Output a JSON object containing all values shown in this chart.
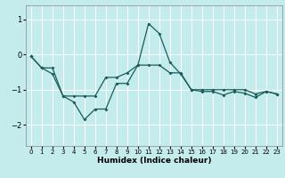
{
  "xlabel": "Humidex (Indice chaleur)",
  "ylabel": "",
  "bg_color": "#c5ecec",
  "line_color": "#1a5c5c",
  "grid_color": "#ffffff",
  "xlim": [
    -0.5,
    23.5
  ],
  "ylim": [
    -2.6,
    1.4
  ],
  "yticks": [
    -2,
    -1,
    0,
    1
  ],
  "xticks": [
    0,
    1,
    2,
    3,
    4,
    5,
    6,
    7,
    8,
    9,
    10,
    11,
    12,
    13,
    14,
    15,
    16,
    17,
    18,
    19,
    20,
    21,
    22,
    23
  ],
  "line1_x": [
    0,
    1,
    2,
    3,
    4,
    5,
    6,
    7,
    8,
    9,
    10,
    11,
    12,
    13,
    14,
    15,
    16,
    17,
    18,
    19,
    20,
    21,
    22,
    23
  ],
  "line1_y": [
    -0.05,
    -0.38,
    -0.55,
    -1.18,
    -1.35,
    -1.85,
    -1.55,
    -1.55,
    -0.82,
    -0.82,
    -0.3,
    0.88,
    0.6,
    -0.22,
    -0.55,
    -1.0,
    -1.05,
    -1.05,
    -1.15,
    -1.05,
    -1.1,
    -1.22,
    -1.05,
    -1.12
  ],
  "line2_x": [
    0,
    1,
    2,
    3,
    4,
    5,
    6,
    7,
    8,
    9,
    10,
    11,
    12,
    13,
    14,
    15,
    16,
    17,
    18,
    19,
    20,
    21,
    22,
    23
  ],
  "line2_y": [
    -0.05,
    -0.38,
    -0.38,
    -1.18,
    -1.18,
    -1.18,
    -1.18,
    -0.65,
    -0.65,
    -0.52,
    -0.3,
    -0.3,
    -0.3,
    -0.52,
    -0.52,
    -1.0,
    -1.0,
    -1.0,
    -1.0,
    -1.0,
    -1.0,
    -1.12,
    -1.05,
    -1.12
  ]
}
